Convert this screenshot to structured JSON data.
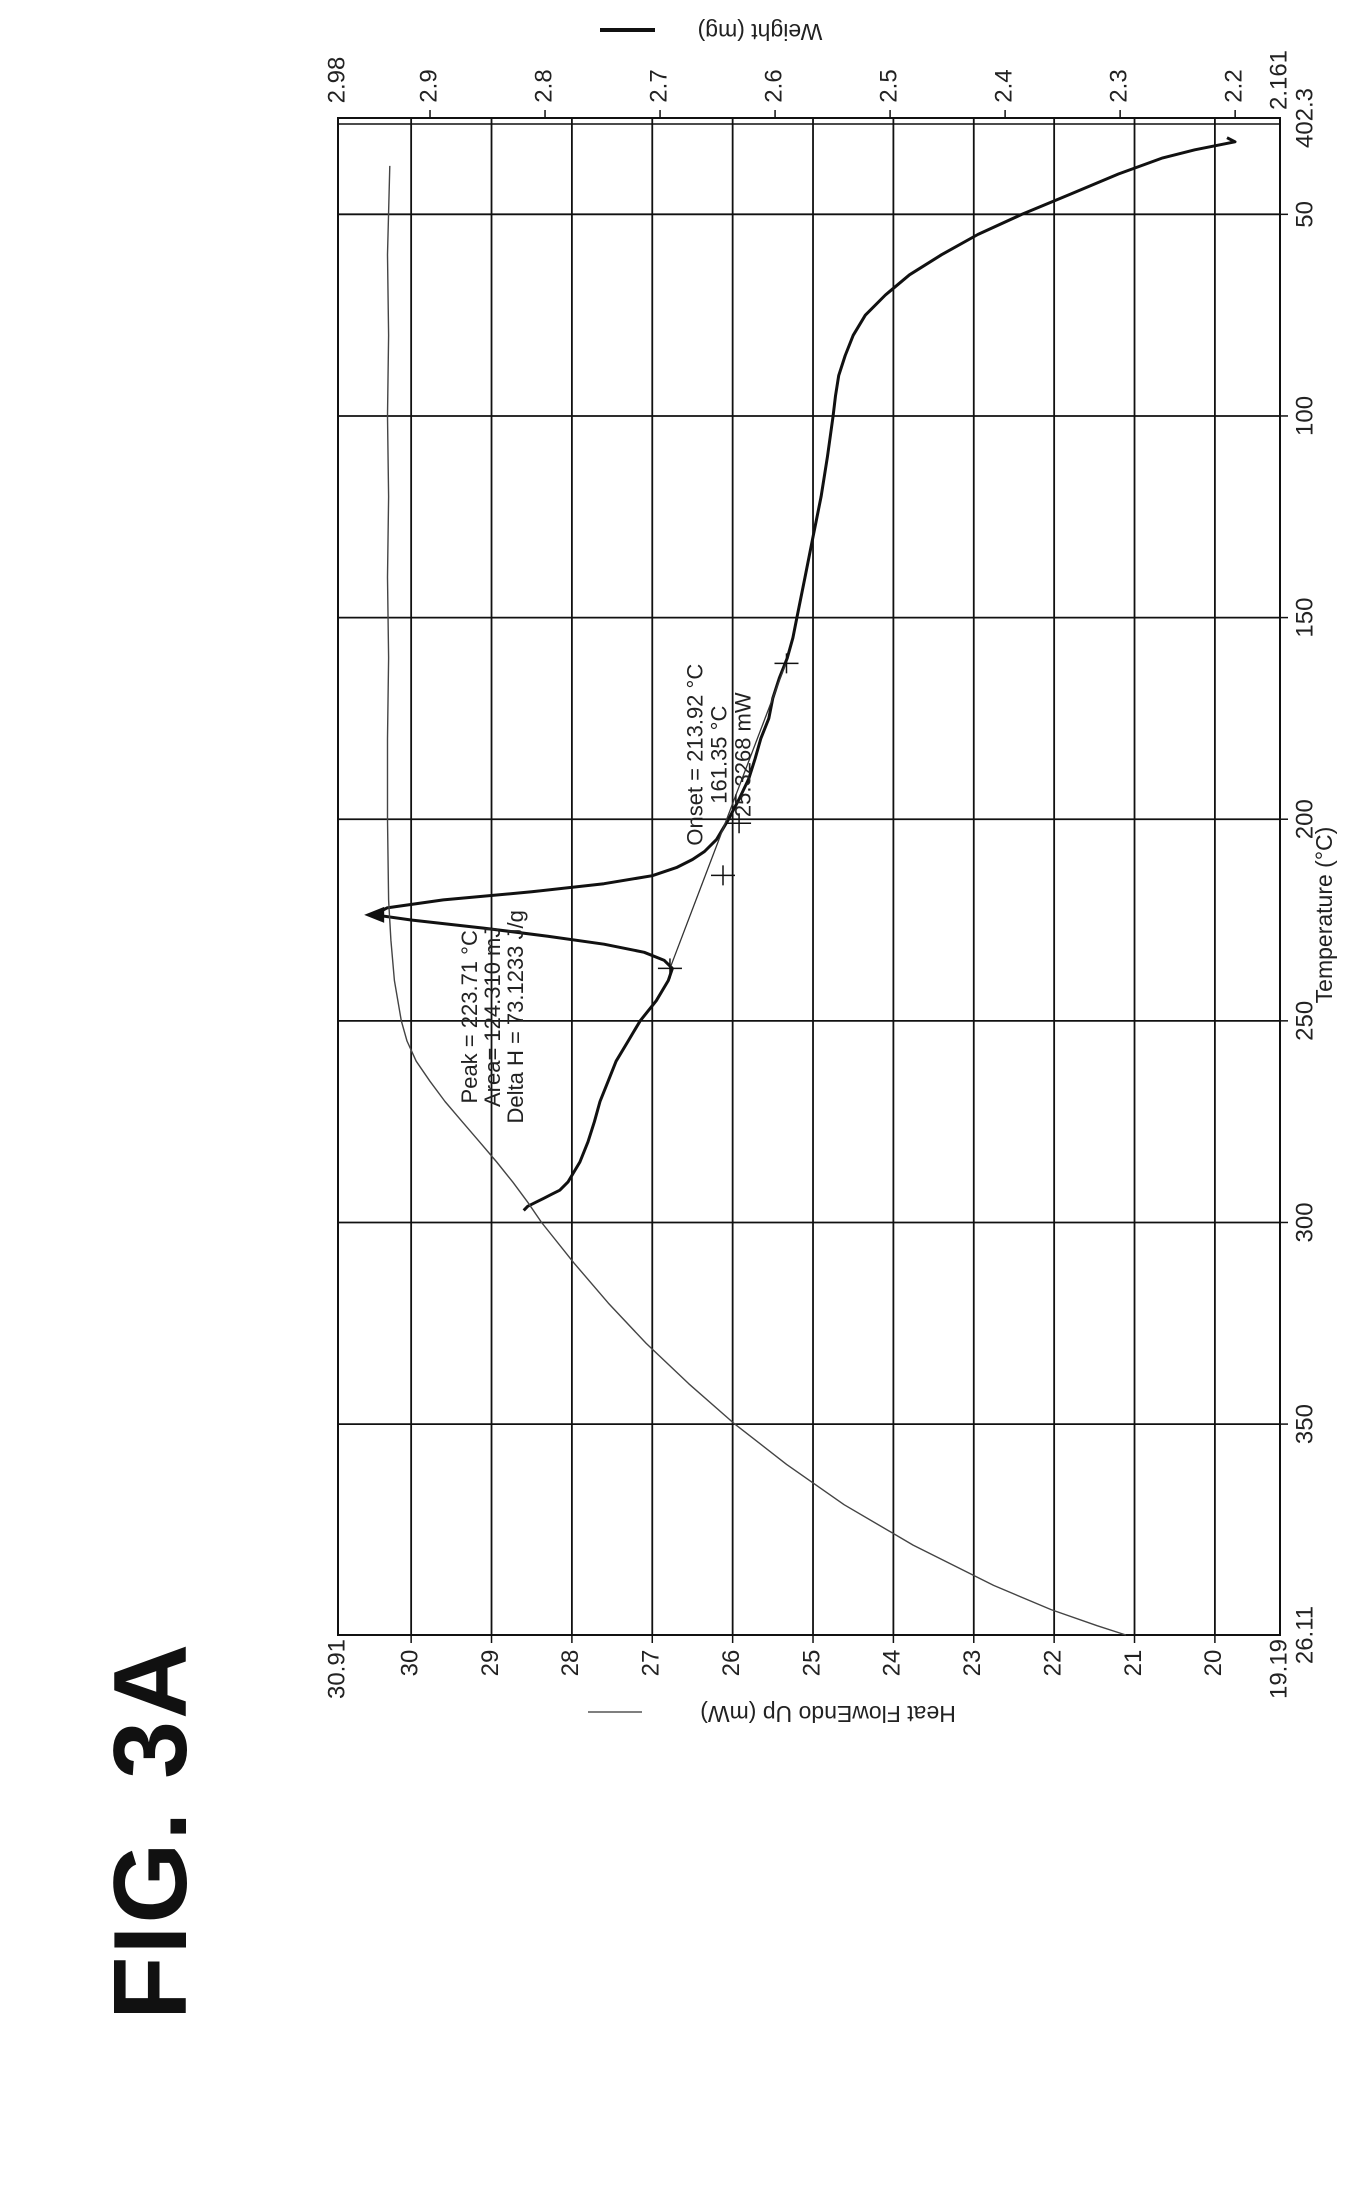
{
  "figure_label": "FIG. 3A",
  "chart_data": {
    "type": "line",
    "title": "",
    "x_axis": {
      "label": "Temperature (°C)",
      "range": [
        26.11,
        402.3
      ],
      "ticks": [
        50,
        100,
        150,
        200,
        250,
        300,
        350
      ],
      "end_labels": [
        "26.11",
        "402.3"
      ]
    },
    "y_left": {
      "label": "Heat FlowEndo Up (mW)",
      "range": [
        19.19,
        30.91
      ],
      "ticks": [
        20,
        21,
        22,
        23,
        24,
        25,
        26,
        27,
        28,
        29,
        30
      ],
      "end_labels": [
        "19.19",
        "30.91"
      ]
    },
    "y_right": {
      "label": "Weight (mg)",
      "range": [
        2.161,
        2.98
      ],
      "ticks": [
        2.2,
        2.3,
        2.4,
        2.5,
        2.6,
        2.7,
        2.8,
        2.9
      ],
      "end_labels": [
        "2.161",
        "2.98"
      ]
    },
    "grid": true,
    "legend": "left and right axis titles",
    "series": [
      {
        "name": "Heat FlowEndo Up (mW)",
        "axis": "left",
        "color": "#111111",
        "x": [
          31,
          32,
          33,
          34,
          36,
          40,
          45,
          50,
          55,
          60,
          65,
          70,
          75,
          80,
          85,
          90,
          95,
          100,
          110,
          120,
          130,
          140,
          150,
          155,
          160,
          165,
          170,
          175,
          180,
          185,
          190,
          195,
          200,
          205,
          208,
          210,
          212,
          214,
          216,
          218,
          220,
          222,
          223.71,
          225,
          227,
          229,
          231,
          233,
          235,
          237,
          240,
          245,
          250,
          255,
          260,
          265,
          270,
          275,
          280,
          285,
          290,
          292,
          293,
          294,
          295,
          296,
          297
        ],
        "y": [
          19.85,
          19.75,
          20.0,
          20.25,
          20.65,
          21.2,
          21.8,
          22.4,
          22.95,
          23.4,
          23.8,
          24.1,
          24.35,
          24.5,
          24.6,
          24.68,
          24.72,
          24.75,
          24.82,
          24.9,
          25.0,
          25.1,
          25.2,
          25.25,
          25.32,
          25.42,
          25.5,
          25.55,
          25.65,
          25.72,
          25.8,
          25.92,
          26.05,
          26.2,
          26.35,
          26.5,
          26.7,
          27.0,
          27.6,
          28.5,
          29.6,
          30.3,
          30.46,
          30.0,
          29.1,
          28.3,
          27.6,
          27.1,
          26.85,
          26.75,
          26.8,
          26.95,
          27.15,
          27.3,
          27.45,
          27.55,
          27.65,
          27.72,
          27.8,
          27.9,
          28.05,
          28.15,
          28.25,
          28.35,
          28.45,
          28.55,
          28.6
        ]
      },
      {
        "name": "Weight (mg)",
        "axis": "right",
        "color": "#444444",
        "x": [
          38,
          60,
          80,
          100,
          120,
          140,
          160,
          180,
          200,
          220,
          230,
          240,
          250,
          255,
          260,
          265,
          270,
          275,
          280,
          285,
          290,
          295,
          300,
          310,
          320,
          330,
          340,
          350,
          360,
          370,
          380,
          390,
          396,
          400,
          402.3
        ],
        "y": [
          2.935,
          2.937,
          2.936,
          2.937,
          2.936,
          2.937,
          2.936,
          2.937,
          2.937,
          2.936,
          2.934,
          2.931,
          2.925,
          2.92,
          2.912,
          2.9,
          2.887,
          2.872,
          2.857,
          2.842,
          2.828,
          2.815,
          2.803,
          2.775,
          2.745,
          2.712,
          2.675,
          2.635,
          2.59,
          2.54,
          2.48,
          2.41,
          2.36,
          2.32,
          2.295
        ]
      }
    ],
    "annotations": [
      {
        "lines": [
          "Peak = 223.71 °C",
          "Area= 124.310 mJ",
          "Delta H = 73.1233 J/g"
        ]
      },
      {
        "lines": [
          "Onset = 213.92 °C",
          "161.35 °C",
          "25.3268 mW"
        ]
      }
    ]
  }
}
